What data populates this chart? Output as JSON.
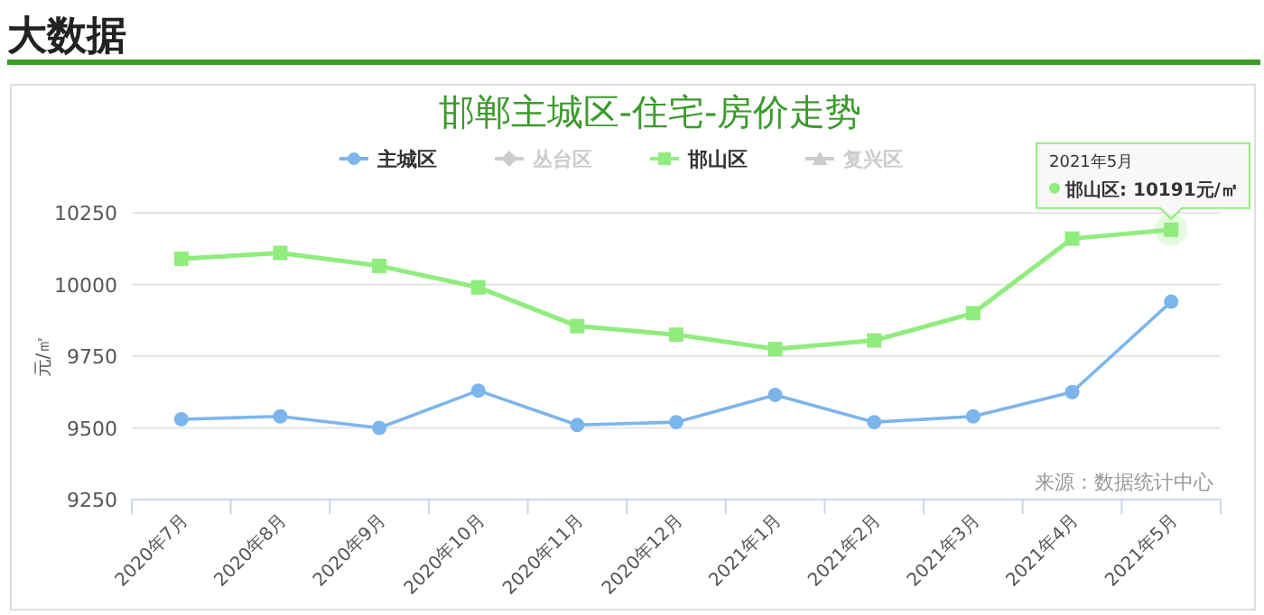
{
  "chart_data": {
    "type": "line",
    "title": "邯郸主城区-住宅-房价走势",
    "ylabel": "元/㎡",
    "categories": [
      "2020年7月",
      "2020年8月",
      "2020年9月",
      "2020年10月",
      "2020年11月",
      "2020年12月",
      "2021年1月",
      "2021年2月",
      "2021年3月",
      "2021年4月",
      "2021年5月"
    ],
    "series": [
      {
        "name": "主城区",
        "color": "#7cb5ec",
        "marker": "circle",
        "values": [
          9530,
          9540,
          9500,
          9630,
          9510,
          9520,
          9615,
          9520,
          9540,
          9625,
          9940
        ]
      },
      {
        "name": "丛台区",
        "color": "#cccccc",
        "marker": "diamond",
        "values": [
          null,
          null,
          null,
          null,
          null,
          null,
          null,
          null,
          null,
          null,
          null
        ]
      },
      {
        "name": "邯山区",
        "color": "#90ed7d",
        "marker": "square",
        "values": [
          10090,
          10110,
          10065,
          9990,
          9855,
          9825,
          9775,
          9805,
          9900,
          10160,
          10191
        ]
      },
      {
        "name": "复兴区",
        "color": "#cccccc",
        "marker": "triangle",
        "values": [
          null,
          null,
          null,
          null,
          null,
          null,
          null,
          null,
          null,
          null,
          null
        ]
      }
    ],
    "ylim": [
      9250,
      10250
    ],
    "yticks": [
      9250,
      9500,
      9750,
      10000,
      10250
    ],
    "grid": "y",
    "legend": "top",
    "annotations": [
      "大数据",
      "来源：数据统计中心",
      "2021年5月",
      {
        "text": "邯山区: 10191元/㎡",
        "x": "2021年5月",
        "y": 10191
      }
    ]
  }
}
